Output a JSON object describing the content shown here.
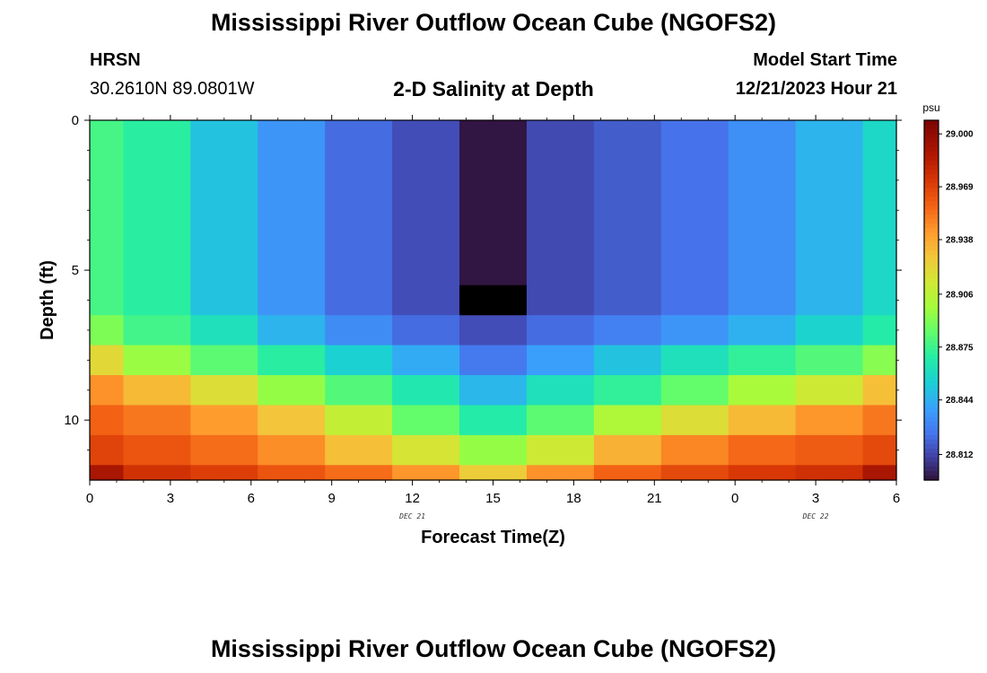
{
  "header": {
    "title": "Mississippi River Outflow Ocean Cube (NGOFS2)",
    "station_name": "HRSN",
    "station_coords": "30.2610N  89.0801W",
    "subtitle": "2-D Salinity at Depth",
    "model_start_label": "Model Start Time",
    "model_start_value": "12/21/2023 Hour 21"
  },
  "footer": {
    "title": "Mississippi River Outflow Ocean Cube (NGOFS2)"
  },
  "chart_data": {
    "type": "heatmap",
    "xlabel": "Forecast Time(Z)",
    "ylabel": "Depth (ft)",
    "x_ticks": [
      "0",
      "3",
      "6",
      "9",
      "12",
      "15",
      "18",
      "21",
      "0",
      "3",
      "6"
    ],
    "y_ticks": [
      "0",
      "5",
      "10"
    ],
    "ylim": [
      0,
      12
    ],
    "date_labels": [
      {
        "text": "DEC 21",
        "x_hour": 12
      },
      {
        "text": "DEC 22",
        "x_hour": 27
      }
    ],
    "column_x_edges": [
      0,
      1.25,
      3.75,
      6.25,
      8.75,
      11.25,
      13.75,
      16.25,
      18.75,
      21.25,
      23.75,
      26.25,
      28.75,
      30
    ],
    "row_depth_edges": [
      0,
      6.5,
      7.5,
      8.5,
      9.5,
      10.5,
      11.5,
      12
    ],
    "salinity": [
      [
        28.877,
        28.87,
        28.85,
        28.835,
        28.822,
        28.814,
        28.798,
        28.813,
        28.818,
        28.824,
        28.833,
        28.845,
        28.858
      ],
      [
        28.89,
        28.876,
        28.862,
        28.845,
        28.832,
        28.822,
        28.814,
        28.822,
        28.828,
        28.835,
        28.844,
        28.856,
        28.868
      ],
      [
        28.92,
        28.896,
        28.882,
        28.87,
        28.855,
        28.842,
        28.826,
        28.838,
        28.85,
        28.862,
        28.872,
        28.88,
        28.892
      ],
      [
        28.945,
        28.932,
        28.918,
        28.895,
        28.88,
        28.866,
        28.846,
        28.862,
        28.872,
        28.884,
        28.9,
        28.912,
        28.93
      ],
      [
        28.958,
        28.952,
        28.942,
        28.928,
        28.908,
        28.884,
        28.868,
        28.882,
        28.902,
        28.918,
        28.932,
        28.944,
        28.952
      ],
      [
        28.968,
        28.962,
        28.955,
        28.946,
        28.93,
        28.915,
        28.895,
        28.912,
        28.935,
        28.948,
        28.956,
        28.96,
        28.966
      ],
      [
        28.99,
        28.975,
        28.97,
        28.962,
        28.955,
        28.944,
        28.925,
        28.945,
        28.958,
        28.966,
        28.972,
        28.976,
        28.99
      ]
    ],
    "masked_cells": [
      {
        "row": 0,
        "col": 6,
        "depth_from": 5.5,
        "depth_to": 6.5
      }
    ],
    "colorbar": {
      "unit": "psu",
      "min": 28.797,
      "max": 29.008,
      "ticks": [
        "29.000",
        "28.969",
        "28.938",
        "28.906",
        "28.875",
        "28.844",
        "28.812"
      ]
    }
  }
}
